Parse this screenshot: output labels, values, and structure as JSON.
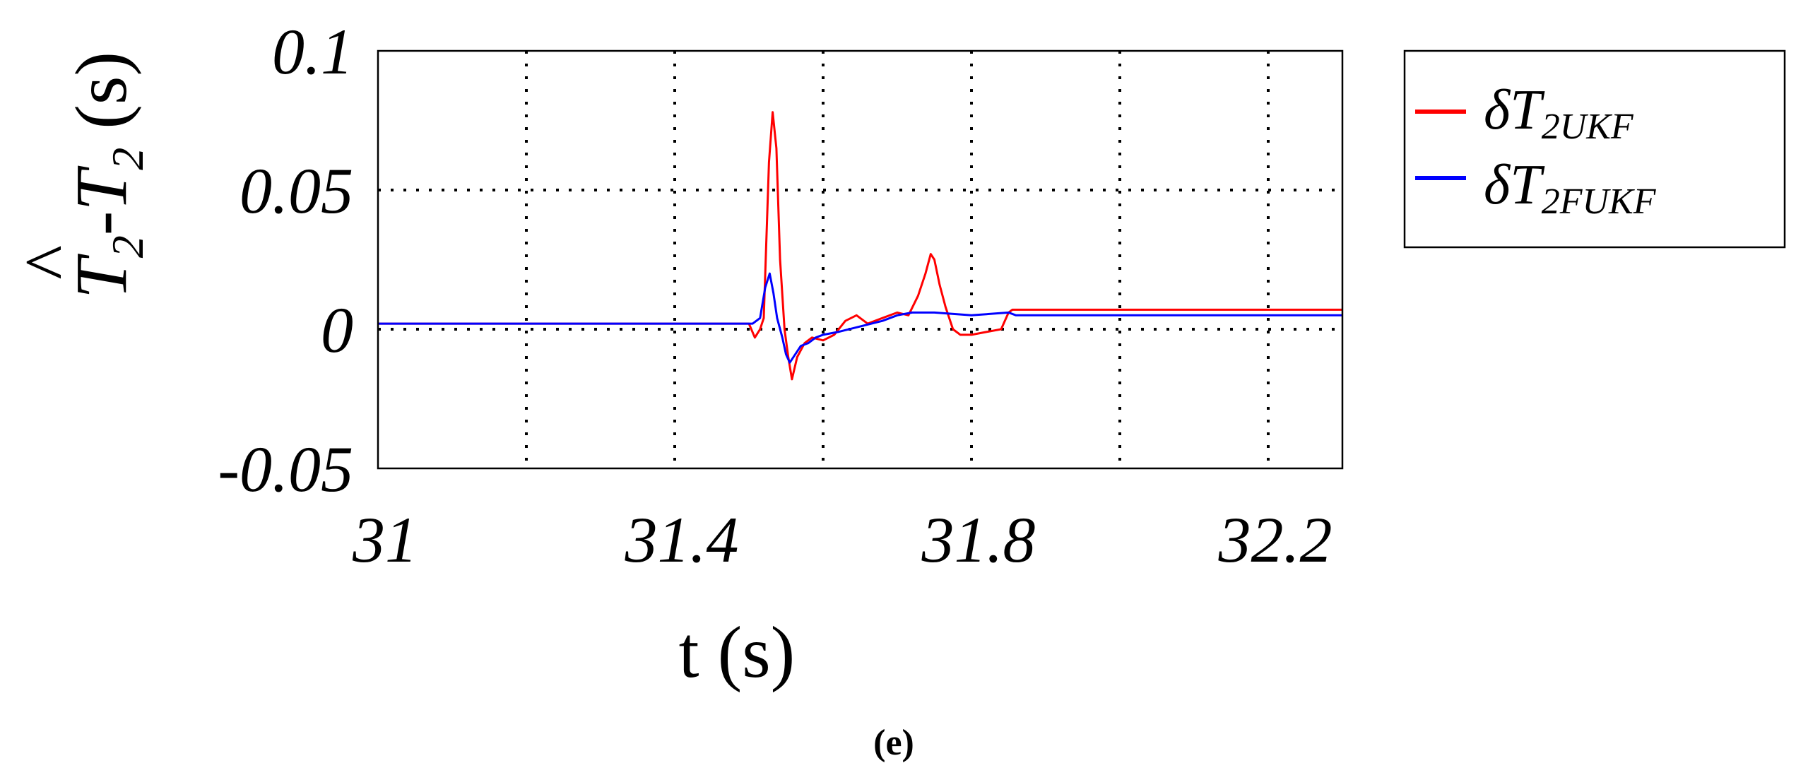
{
  "chart_data": {
    "type": "line",
    "xlabel": "t (s)",
    "ylabel": {
      "hat": "^",
      "t1": "T",
      "s1": "2",
      "dash": "-",
      "t2": "T",
      "s2": "2",
      "unit": " (s)"
    },
    "xlim": [
      31.0,
      32.3
    ],
    "ylim": [
      -0.05,
      0.1
    ],
    "xticks": [
      31.0,
      31.2,
      31.4,
      31.6,
      31.8,
      32.0,
      32.2
    ],
    "xtick_labels": [
      "31",
      "",
      "31.4",
      "",
      "31.8",
      "",
      "32.2"
    ],
    "yticks": [
      -0.05,
      0.0,
      0.05,
      0.1
    ],
    "ytick_labels": [
      "-0.05",
      "0",
      "0.05",
      "0.1"
    ],
    "grid": true,
    "legend_position": "outside-right",
    "series": [
      {
        "name": "δT2UKF",
        "legend": {
          "main": "δT",
          "sub": "2UKF"
        },
        "color": "#ff0000",
        "x": [
          31.0,
          31.5,
          31.508,
          31.515,
          31.52,
          31.527,
          31.532,
          31.537,
          31.542,
          31.548,
          31.553,
          31.558,
          31.565,
          31.575,
          31.585,
          31.6,
          31.615,
          31.63,
          31.645,
          31.66,
          31.68,
          31.7,
          31.715,
          31.728,
          31.738,
          31.745,
          31.75,
          31.757,
          31.765,
          31.775,
          31.785,
          31.8,
          31.82,
          31.84,
          31.85,
          31.855,
          32.3
        ],
        "y": [
          0.002,
          0.002,
          -0.003,
          0.0,
          0.004,
          0.06,
          0.078,
          0.065,
          0.025,
          0.0,
          -0.01,
          -0.018,
          -0.01,
          -0.005,
          -0.003,
          -0.004,
          -0.002,
          0.003,
          0.005,
          0.002,
          0.004,
          0.006,
          0.005,
          0.012,
          0.02,
          0.027,
          0.025,
          0.016,
          0.008,
          0.0,
          -0.002,
          -0.002,
          -0.001,
          0.0,
          0.006,
          0.007,
          0.007
        ]
      },
      {
        "name": "δT2FUKF",
        "legend": {
          "main": "δT",
          "sub": "2FUKF"
        },
        "color": "#0000ff",
        "x": [
          31.0,
          31.505,
          31.515,
          31.522,
          31.528,
          31.533,
          31.538,
          31.545,
          31.55,
          31.555,
          31.56,
          31.57,
          31.58,
          31.59,
          31.6,
          31.62,
          31.65,
          31.68,
          31.7,
          31.72,
          31.75,
          31.8,
          31.85,
          31.86,
          32.3
        ],
        "y": [
          0.002,
          0.002,
          0.004,
          0.015,
          0.02,
          0.013,
          0.004,
          -0.003,
          -0.009,
          -0.012,
          -0.01,
          -0.006,
          -0.005,
          -0.003,
          -0.002,
          -0.001,
          0.001,
          0.003,
          0.005,
          0.006,
          0.006,
          0.005,
          0.006,
          0.005,
          0.005
        ]
      }
    ]
  },
  "caption": "(e)"
}
